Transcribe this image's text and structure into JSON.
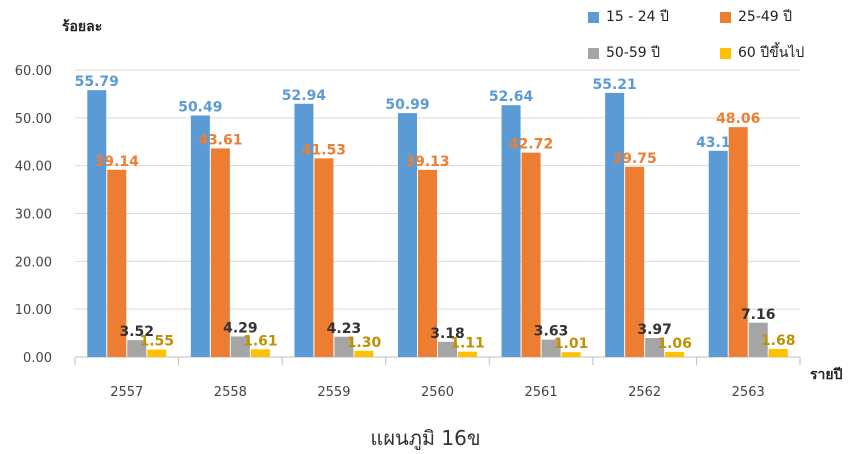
{
  "chart_data": {
    "type": "bar",
    "title": "",
    "caption": "แผนภูมิ 16ข",
    "xlabel": "รายปี",
    "ylabel": "ร้อยละ",
    "ylim": [
      0,
      60
    ],
    "yticks": [
      "0.00",
      "10.00",
      "20.00",
      "30.00",
      "40.00",
      "50.00",
      "60.00"
    ],
    "categories": [
      "2557",
      "2558",
      "2559",
      "2560",
      "2561",
      "2562",
      "2563"
    ],
    "legend_position": "top-right",
    "grid": true,
    "series": [
      {
        "name": "15 - 24 ปี",
        "color": "#5B9BD5",
        "label_color": "#5B9BD5",
        "values": [
          55.79,
          50.49,
          52.94,
          50.99,
          52.64,
          55.21,
          43.11
        ],
        "labels": [
          "55.79",
          "50.49",
          "52.94",
          "50.99",
          "52.64",
          "55.21",
          "43.11"
        ]
      },
      {
        "name": "25-49 ปี",
        "color": "#ED7D31",
        "label_color": "#ED7D31",
        "values": [
          39.14,
          43.61,
          41.53,
          39.13,
          42.72,
          39.75,
          48.06
        ],
        "labels": [
          "39.14",
          "43.61",
          "41.53",
          "39.13",
          "42.72",
          "39.75",
          "48.06"
        ]
      },
      {
        "name": "50-59 ปี",
        "color": "#A5A5A5",
        "label_color": "#333333",
        "values": [
          3.52,
          4.29,
          4.23,
          3.18,
          3.63,
          3.97,
          7.16
        ],
        "labels": [
          "3.52",
          "4.29",
          "4.23",
          "3.18",
          "3.63",
          "3.97",
          "7.16"
        ]
      },
      {
        "name": "60 ปีขึ้นไป",
        "color": "#FFC000",
        "label_color": "#BF9000",
        "values": [
          1.55,
          1.61,
          1.3,
          1.11,
          1.01,
          1.06,
          1.68
        ],
        "labels": [
          "1.55",
          "1.61",
          "1.30",
          "1.11",
          "1.01",
          "1.06",
          "1.68"
        ]
      }
    ]
  }
}
